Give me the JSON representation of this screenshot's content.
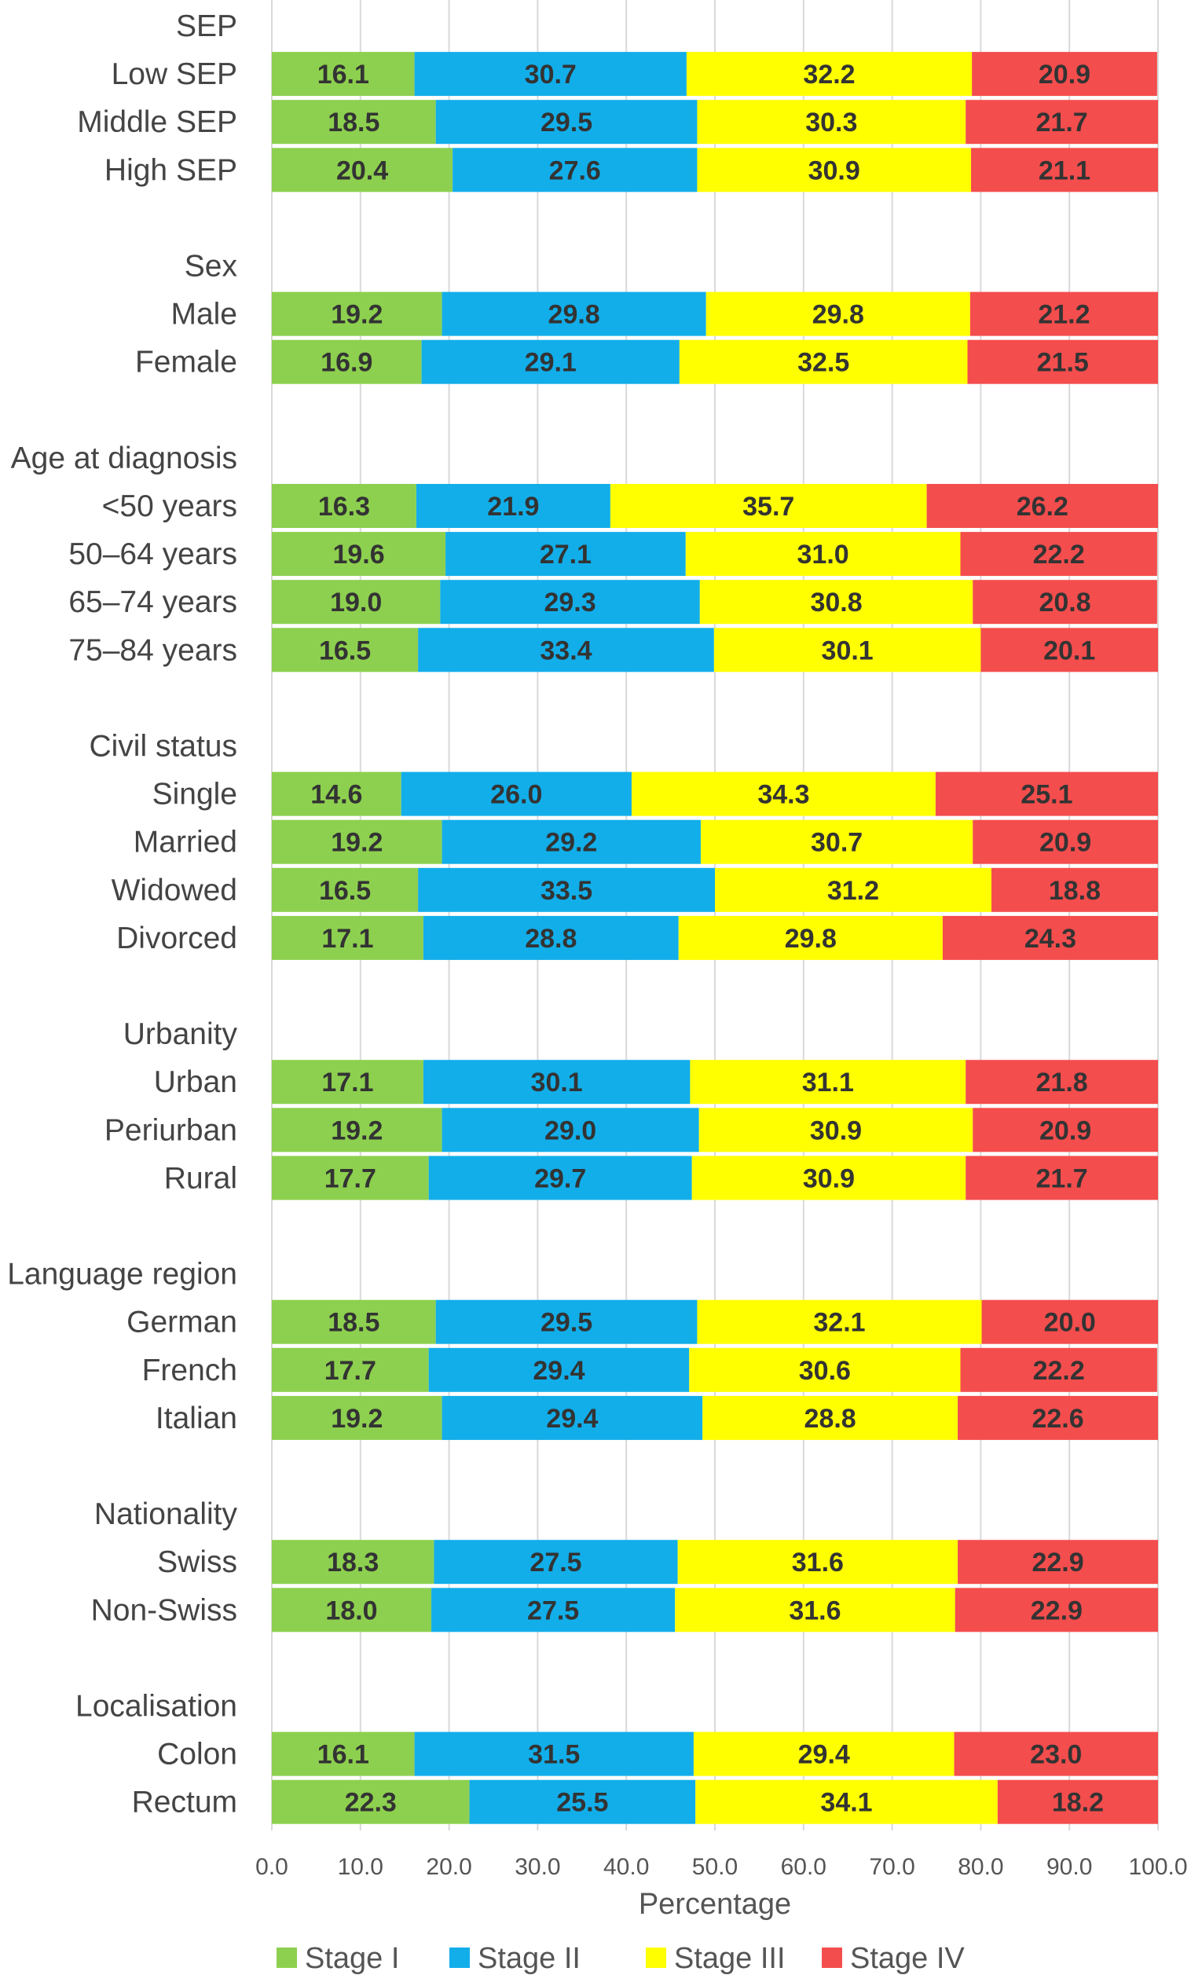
{
  "chart_data": {
    "type": "bar",
    "orientation": "horizontal",
    "stacked": true,
    "xlabel": "Percentage",
    "xlim": [
      0,
      100
    ],
    "xticks": [
      "0.0",
      "10.0",
      "20.0",
      "30.0",
      "40.0",
      "50.0",
      "60.0",
      "70.0",
      "80.0",
      "90.0",
      "100.0"
    ],
    "grid": true,
    "legend_position": "bottom",
    "series": [
      {
        "name": "Stage I",
        "color": "#8dd04f"
      },
      {
        "name": "Stage II",
        "color": "#12aeea"
      },
      {
        "name": "Stage III",
        "color": "#ffff00"
      },
      {
        "name": "Stage IV",
        "color": "#f44d4d"
      }
    ],
    "groups": [
      {
        "label": "SEP",
        "rows": [
          {
            "label": "Low SEP",
            "values": [
              16.1,
              30.7,
              32.2,
              20.9
            ]
          },
          {
            "label": "Middle SEP",
            "values": [
              18.5,
              29.5,
              30.3,
              21.7
            ]
          },
          {
            "label": "High SEP",
            "values": [
              20.4,
              27.6,
              30.9,
              21.1
            ]
          }
        ]
      },
      {
        "label": "Sex",
        "rows": [
          {
            "label": "Male",
            "values": [
              19.2,
              29.8,
              29.8,
              21.2
            ]
          },
          {
            "label": "Female",
            "values": [
              16.9,
              29.1,
              32.5,
              21.5
            ]
          }
        ]
      },
      {
        "label": "Age at diagnosis",
        "rows": [
          {
            "label": "<50 years",
            "values": [
              16.3,
              21.9,
              35.7,
              26.2
            ]
          },
          {
            "label": "50–64 years",
            "values": [
              19.6,
              27.1,
              31.0,
              22.2
            ]
          },
          {
            "label": "65–74 years",
            "values": [
              19.0,
              29.3,
              30.8,
              20.8
            ]
          },
          {
            "label": "75–84 years",
            "values": [
              16.5,
              33.4,
              30.1,
              20.1
            ]
          }
        ]
      },
      {
        "label": "Civil status",
        "rows": [
          {
            "label": "Single",
            "values": [
              14.6,
              26.0,
              34.3,
              25.1
            ]
          },
          {
            "label": "Married",
            "values": [
              19.2,
              29.2,
              30.7,
              20.9
            ]
          },
          {
            "label": "Widowed",
            "values": [
              16.5,
              33.5,
              31.2,
              18.8
            ]
          },
          {
            "label": "Divorced",
            "values": [
              17.1,
              28.8,
              29.8,
              24.3
            ]
          }
        ]
      },
      {
        "label": "Urbanity",
        "rows": [
          {
            "label": "Urban",
            "values": [
              17.1,
              30.1,
              31.1,
              21.8
            ]
          },
          {
            "label": "Periurban",
            "values": [
              19.2,
              29.0,
              30.9,
              20.9
            ]
          },
          {
            "label": "Rural",
            "values": [
              17.7,
              29.7,
              30.9,
              21.7
            ]
          }
        ]
      },
      {
        "label": "Language region",
        "rows": [
          {
            "label": "German",
            "values": [
              18.5,
              29.5,
              32.1,
              20.0
            ]
          },
          {
            "label": "French",
            "values": [
              17.7,
              29.4,
              30.6,
              22.2
            ]
          },
          {
            "label": "Italian",
            "values": [
              19.2,
              29.4,
              28.8,
              22.6
            ]
          }
        ]
      },
      {
        "label": "Nationality",
        "rows": [
          {
            "label": "Swiss",
            "values": [
              18.3,
              27.5,
              31.6,
              22.9
            ]
          },
          {
            "label": "Non-Swiss",
            "values": [
              18.0,
              27.5,
              31.6,
              22.9
            ]
          }
        ]
      },
      {
        "label": "Localisation",
        "rows": [
          {
            "label": "Colon",
            "values": [
              16.1,
              31.5,
              29.4,
              23.0
            ]
          },
          {
            "label": "Rectum",
            "values": [
              22.3,
              25.5,
              34.1,
              18.2
            ]
          }
        ]
      }
    ]
  }
}
